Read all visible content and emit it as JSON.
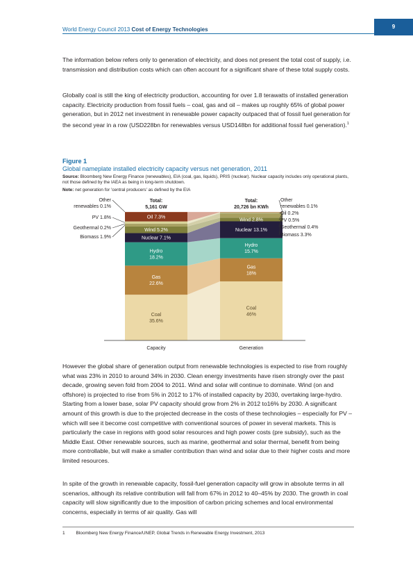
{
  "header": {
    "org": "World Energy Council 2013",
    "title": "Cost of Energy Technologies",
    "page_number": "9"
  },
  "paragraphs": [
    "The information below refers only to generation of electricity, and does not present the total cost of supply, i.e. transmission and distribution costs which can often account for a significant share of these total supply costs.",
    "Globally coal is still the king of electricity production, accounting for over 1.8 terawatts of installed generation capacity. Electricity production from fossil fuels – coal, gas and oil – makes up roughly 65% of global power generation, but in 2012 net investment in renewable power capacity outpaced that of fossil fuel generation for the second year in a row (USD228bn for renewables versus USD148bn for additional fossil fuel generation).",
    "However the global share of generation output from renewable technologies is expected to rise from roughly what was 23% in 2010 to around 34% in 2030. Clean energy investments have risen strongly over the past decade, growing seven fold from 2004 to 2011. Wind and solar will continue to dominate. Wind (on and offshore) is projected to rise from 5% in 2012 to 17% of installed capacity by 2030, overtaking large-hydro. Starting from a lower base, solar PV capacity should grow from 2% in 2012 to16% by 2030. A significant amount of this growth is due to the projected decrease in the costs of these technologies – especially for PV – which will see it become cost competitive with conventional sources of power in several markets. This is particularly the case in regions with good solar resources and high power costs (pre subsidy), such as the Middle East. Other renewable sources, such as marine, geothermal and solar thermal, benefit from being more controllable, but will make a smaller contribution than wind and solar due to their higher costs and more limited resources.",
    "In spite of the growth in renewable capacity, fossil-fuel generation capacity will grow in absolute terms in all scenarios, although its relative contribution will fall from 67% in 2012 to 40–45% by 2030. The growth in coal capacity will slow significantly due to the imposition of carbon pricing schemes and local environmental concerns, especially in terms of air quality. Gas will"
  ],
  "footnote_marker": "1",
  "figure": {
    "label": "Figure 1",
    "title": "Global nameplate installed electricity capacity versus net generation, 2011",
    "source_label": "Source:",
    "source_text": "Bloomberg New Energy Finance (renewables), EIA (coal, gas, liquids), PRIS (nuclear). Nuclear capacity includes only operational plants, not those defined by the IAEA as being in long-term shutdown.",
    "note_label": "Note:",
    "note_text": "net generation for 'central producers' as defined by the EIA"
  },
  "chart_data": {
    "type": "bar",
    "stacked": true,
    "categories": [
      "Capacity",
      "Generation"
    ],
    "totals": [
      {
        "label": "Total:",
        "value": "5,161 GW"
      },
      {
        "label": "Total:",
        "value": "20,726 bn KWh"
      }
    ],
    "series": [
      {
        "name": "Coal",
        "values": [
          35.6,
          46
        ],
        "labels": [
          "Coal\n35.6%",
          "Coal\n46%"
        ],
        "color": "#ecd9a7",
        "link_color": "#f3ead0"
      },
      {
        "name": "Gas",
        "values": [
          22.6,
          18
        ],
        "labels": [
          "Gas\n22.6%",
          "Gas\n18%"
        ],
        "color": "#b8843e",
        "link_color": "#e8c89a"
      },
      {
        "name": "Hydro",
        "values": [
          18.2,
          15.7
        ],
        "labels": [
          "Hydro\n18.2%",
          "Hydro\n15.7%"
        ],
        "color": "#2f9a86",
        "link_color": "#a6d6c9"
      },
      {
        "name": "Nuclear",
        "values": [
          7.1,
          13.1
        ],
        "labels": [
          "Nuclear 7.1%",
          "Nuclear 13.1%"
        ],
        "color": "#241e3c",
        "link_color": "#7a7494"
      },
      {
        "name": "Wind",
        "values": [
          5.2,
          2.8
        ],
        "labels": [
          "Wind 5.2%",
          "Wind 2.8%"
        ],
        "color": "#7f7f3c",
        "link_color": "#bdbd93"
      },
      {
        "name": "Biomass",
        "values": [
          1.9,
          3.3
        ],
        "labels": [
          "",
          ""
        ],
        "color": "#a8a060",
        "link_color": "#d3cfa8"
      },
      {
        "name": "Geothermal",
        "values": [
          0.2,
          0.4
        ],
        "labels": [
          "",
          ""
        ],
        "color": "#9e9a6a",
        "link_color": "#cfccae"
      },
      {
        "name": "PV",
        "values": [
          1.8,
          0.5
        ],
        "labels": [
          "",
          ""
        ],
        "color": "#d9d49a",
        "link_color": "#ece9cb"
      },
      {
        "name": "Oil",
        "values": [
          7.3,
          0.2
        ],
        "labels": [
          "Oil 7.3%",
          ""
        ],
        "color": "#8b3a1e",
        "link_color": "#d9a898"
      },
      {
        "name": "Other renewables",
        "values": [
          0.1,
          0.1
        ],
        "labels": [
          "",
          ""
        ],
        "color": "#c46e4e",
        "link_color": "#e6b8a6"
      }
    ],
    "left_callouts": [
      {
        "series": "Other renewables",
        "text": "Other",
        "text2": "renewables 0.1%"
      },
      {
        "series": "PV",
        "text": "PV 1.8%"
      },
      {
        "series": "Geothermal",
        "text": "Geothermal 0.2%"
      },
      {
        "series": "Biomass",
        "text": "Biomass 1.9%"
      }
    ],
    "right_callouts": [
      {
        "series": "Other renewables",
        "text": "Other",
        "text2": "renewables 0.1%"
      },
      {
        "series": "Oil",
        "text": "Oil 0.2%"
      },
      {
        "series": "PV",
        "text": "PV 0.5%"
      },
      {
        "series": "Geothermal",
        "text": "Geothermal 0.4%"
      },
      {
        "series": "Biomass",
        "text": "Biomass 3.3%"
      }
    ]
  },
  "footnote": {
    "number": "1",
    "text": "Bloomberg New Energy Finance/UNEP, Global Trends in Renewable Energy Investment, 2013"
  }
}
